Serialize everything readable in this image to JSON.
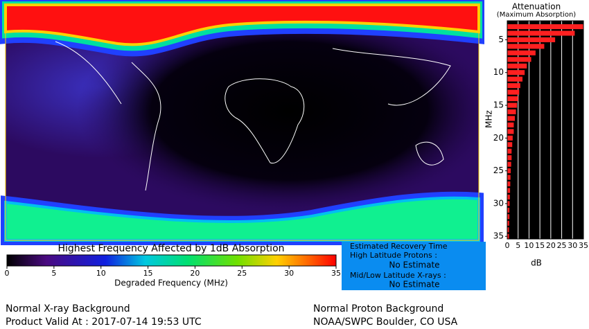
{
  "colorbar": {
    "title": "Highest Frequency Affected by 1dB Absorption",
    "label": "Degraded Frequency (MHz)",
    "lim": [
      0,
      35
    ],
    "ticks": [
      0,
      5,
      10,
      15,
      20,
      25,
      30,
      35
    ]
  },
  "info_box": {
    "title": "Estimated Recovery Time",
    "rows": [
      {
        "label": "High Latitude Protons :",
        "value": "No Estimate"
      },
      {
        "label": "Mid/Low Latitude X-rays :",
        "value": "No Estimate"
      }
    ]
  },
  "footer": {
    "xray": "Normal X-ray Background",
    "valid": "Product Valid At : 2017-07-14 19:53 UTC",
    "proton": "Normal Proton Background",
    "source": "NOAA/SWPC Boulder, CO USA"
  },
  "chart_data": {
    "type": "hbar",
    "title": "Attenuation",
    "subtitle": "(Maximum Absorption)",
    "ylabel": "MHz",
    "xlabel": "dB",
    "color": "#ff2020",
    "y": [
      3,
      4,
      5,
      6,
      7,
      8,
      9,
      10,
      11,
      12,
      13,
      14,
      15,
      16,
      17,
      18,
      19,
      20,
      21,
      22,
      23,
      24,
      25,
      26,
      27,
      28,
      29,
      30,
      31,
      32,
      33,
      34,
      35
    ],
    "values": [
      35,
      31,
      22,
      17,
      13,
      11,
      9,
      8,
      7,
      6,
      5.5,
      5,
      4.5,
      4,
      3.5,
      3,
      3,
      2.5,
      2.3,
      2,
      2,
      1.8,
      1.6,
      1.5,
      1.4,
      1.3,
      1.2,
      1.1,
      1,
      1,
      0.9,
      0.8,
      0.8
    ],
    "ylim": [
      2.1,
      35.4
    ],
    "yticks": [
      5,
      10,
      15,
      20,
      25,
      30,
      35
    ],
    "xlim": [
      0,
      35
    ],
    "xticks": [
      0,
      5,
      10,
      15,
      20,
      25,
      30,
      35
    ],
    "grid": true
  }
}
